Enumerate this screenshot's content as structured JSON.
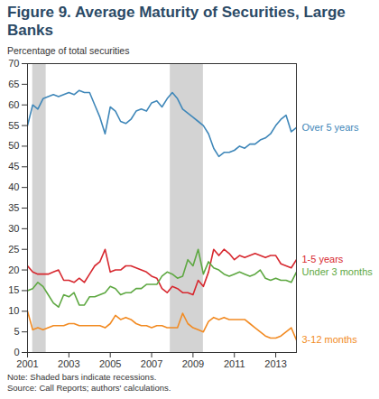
{
  "chart_data": {
    "type": "line",
    "title": "Figure 9. Average Maturity of Securities, Large Banks",
    "subtitle": "Percentage of total securities",
    "note": "Note: Shaded bars indicate recessions.",
    "source": "Source: Call Reports; authors' calculations.",
    "x": [
      2001,
      2001.25,
      2001.5,
      2001.75,
      2002,
      2002.25,
      2002.5,
      2002.75,
      2003,
      2003.25,
      2003.5,
      2003.75,
      2004,
      2004.25,
      2004.5,
      2004.75,
      2005,
      2005.25,
      2005.5,
      2005.75,
      2006,
      2006.25,
      2006.5,
      2006.75,
      2007,
      2007.25,
      2007.5,
      2007.75,
      2008,
      2008.25,
      2008.5,
      2008.75,
      2009,
      2009.25,
      2009.5,
      2009.75,
      2010,
      2010.25,
      2010.5,
      2010.75,
      2011,
      2011.25,
      2011.5,
      2011.75,
      2012,
      2012.25,
      2012.5,
      2012.75,
      2013,
      2013.25,
      2013.5,
      2013.75,
      2014
    ],
    "recessions": [
      [
        2001.25,
        2001.9
      ],
      [
        2007.9,
        2009.5
      ]
    ],
    "xlim": [
      2001,
      2014
    ],
    "xticks": [
      2001,
      2003,
      2005,
      2007,
      2009,
      2011,
      2013
    ],
    "ylim": [
      0,
      70
    ],
    "yticks": [
      0,
      5,
      10,
      15,
      20,
      25,
      30,
      35,
      40,
      45,
      50,
      55,
      60,
      65,
      70
    ],
    "grid": false,
    "series": [
      {
        "name": "Over 5 years",
        "color": "#3f87b9",
        "values": [
          55,
          60,
          59,
          61.5,
          62,
          62.5,
          62,
          62.5,
          63,
          62.5,
          63.5,
          63,
          63,
          60,
          57,
          53,
          59.5,
          58.5,
          56,
          55.5,
          56.5,
          58.5,
          59,
          58.5,
          60.5,
          61,
          59.5,
          61.5,
          63,
          61.5,
          59,
          58,
          57,
          56,
          55,
          53,
          49.5,
          47.5,
          48.5,
          48.5,
          49,
          50,
          49.5,
          50.5,
          50.5,
          51.5,
          52,
          53,
          55,
          56.5,
          57.5,
          53.5,
          54.5
        ]
      },
      {
        "name": "1-5 years",
        "color": "#d7282f",
        "values": [
          21,
          19.5,
          19,
          19,
          19,
          19.5,
          20,
          17.5,
          17.5,
          17,
          18,
          17,
          19,
          21,
          22,
          25,
          19.5,
          20,
          20,
          21,
          21,
          20.5,
          20,
          19.5,
          18.5,
          18,
          15.5,
          14.5,
          16,
          15.5,
          14.5,
          14.5,
          14,
          17.5,
          16,
          19.5,
          25,
          23.5,
          25,
          24,
          22.5,
          23.5,
          23,
          23.5,
          24,
          23.5,
          23,
          23.5,
          23.5,
          21.5,
          21,
          20.5,
          22.5
        ]
      },
      {
        "name": "Under 3 months",
        "color": "#5ea842",
        "values": [
          15,
          15.5,
          17,
          16,
          14,
          12,
          11,
          14,
          13.5,
          14.5,
          11.5,
          11.5,
          13.5,
          13.5,
          14,
          14.5,
          16,
          15.5,
          14,
          14.5,
          14.5,
          15.5,
          15.5,
          16.5,
          16.5,
          16.5,
          18.5,
          19.5,
          19,
          18,
          18.5,
          22.5,
          21,
          25,
          19,
          22,
          20.5,
          20,
          19,
          18.5,
          19,
          19.5,
          19,
          18.5,
          19,
          20,
          18,
          17.5,
          18,
          17.5,
          17.5,
          17,
          19.5
        ]
      },
      {
        "name": "3-12 months",
        "color": "#f28b23",
        "values": [
          10,
          5.5,
          6,
          5.5,
          6,
          6.5,
          6.5,
          6.5,
          7,
          7,
          6.5,
          6.5,
          6.5,
          6.5,
          6.5,
          6,
          7,
          9,
          8,
          8.5,
          8,
          7,
          6.5,
          6.5,
          6,
          6.5,
          6.5,
          6,
          6,
          6,
          9.5,
          7,
          6,
          5.5,
          5,
          7.5,
          8.5,
          8,
          8.5,
          8,
          8,
          8,
          8,
          7,
          6,
          5,
          4,
          3.5,
          3.5,
          4,
          5,
          6,
          3
        ]
      }
    ]
  }
}
